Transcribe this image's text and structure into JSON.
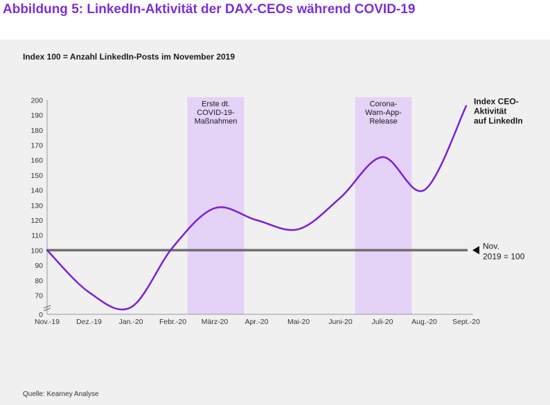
{
  "figure_title": "Abbildung 5: LinkedIn-Aktivität der DAX-CEOs während COVID-19",
  "source": "Quelle: Kearney Analyse",
  "colors": {
    "title": "#7b2fd4",
    "series": "#7a1fd6",
    "band": "#e4d2f7",
    "baseline": "#6e6e6e",
    "panel": "#f0f0f0"
  },
  "chart_data": {
    "type": "line",
    "title": "Index 100 = Anzahl LinkedIn-Posts im November 2019",
    "xlabel": "",
    "ylabel": "",
    "categories": [
      "Nov.-19",
      "Dez.-19",
      "Jan.-20",
      "Febr.-20",
      "März-20",
      "Apr.-20",
      "Mai-20",
      "Juni-20",
      "Juli-20",
      "Aug.-20",
      "Sept.-20"
    ],
    "yticks": [
      0,
      70,
      80,
      90,
      100,
      110,
      120,
      130,
      140,
      150,
      160,
      170,
      180,
      190,
      200
    ],
    "ylim": [
      0,
      200
    ],
    "axis_break": true,
    "grid": false,
    "series": [
      {
        "name": "Index CEO-Aktivität auf LinkedIn",
        "label_lines": [
          "Index CEO-",
          "Aktivität",
          "auf LinkedIn"
        ],
        "values": [
          100,
          72,
          62,
          102,
          128,
          120,
          114,
          135,
          162,
          140,
          196
        ]
      }
    ],
    "reference_line": {
      "value": 100,
      "label_lines": [
        "Nov.",
        "2019 = 100"
      ]
    },
    "highlight_bands": [
      {
        "from_index": 3.35,
        "to_index": 4.7,
        "label_lines": [
          "Erste dt.",
          "COVID-19-",
          "Maßnahmen"
        ]
      },
      {
        "from_index": 7.35,
        "to_index": 8.7,
        "label_lines": [
          "Corona-",
          "Warn-App-",
          "Release"
        ]
      }
    ]
  }
}
